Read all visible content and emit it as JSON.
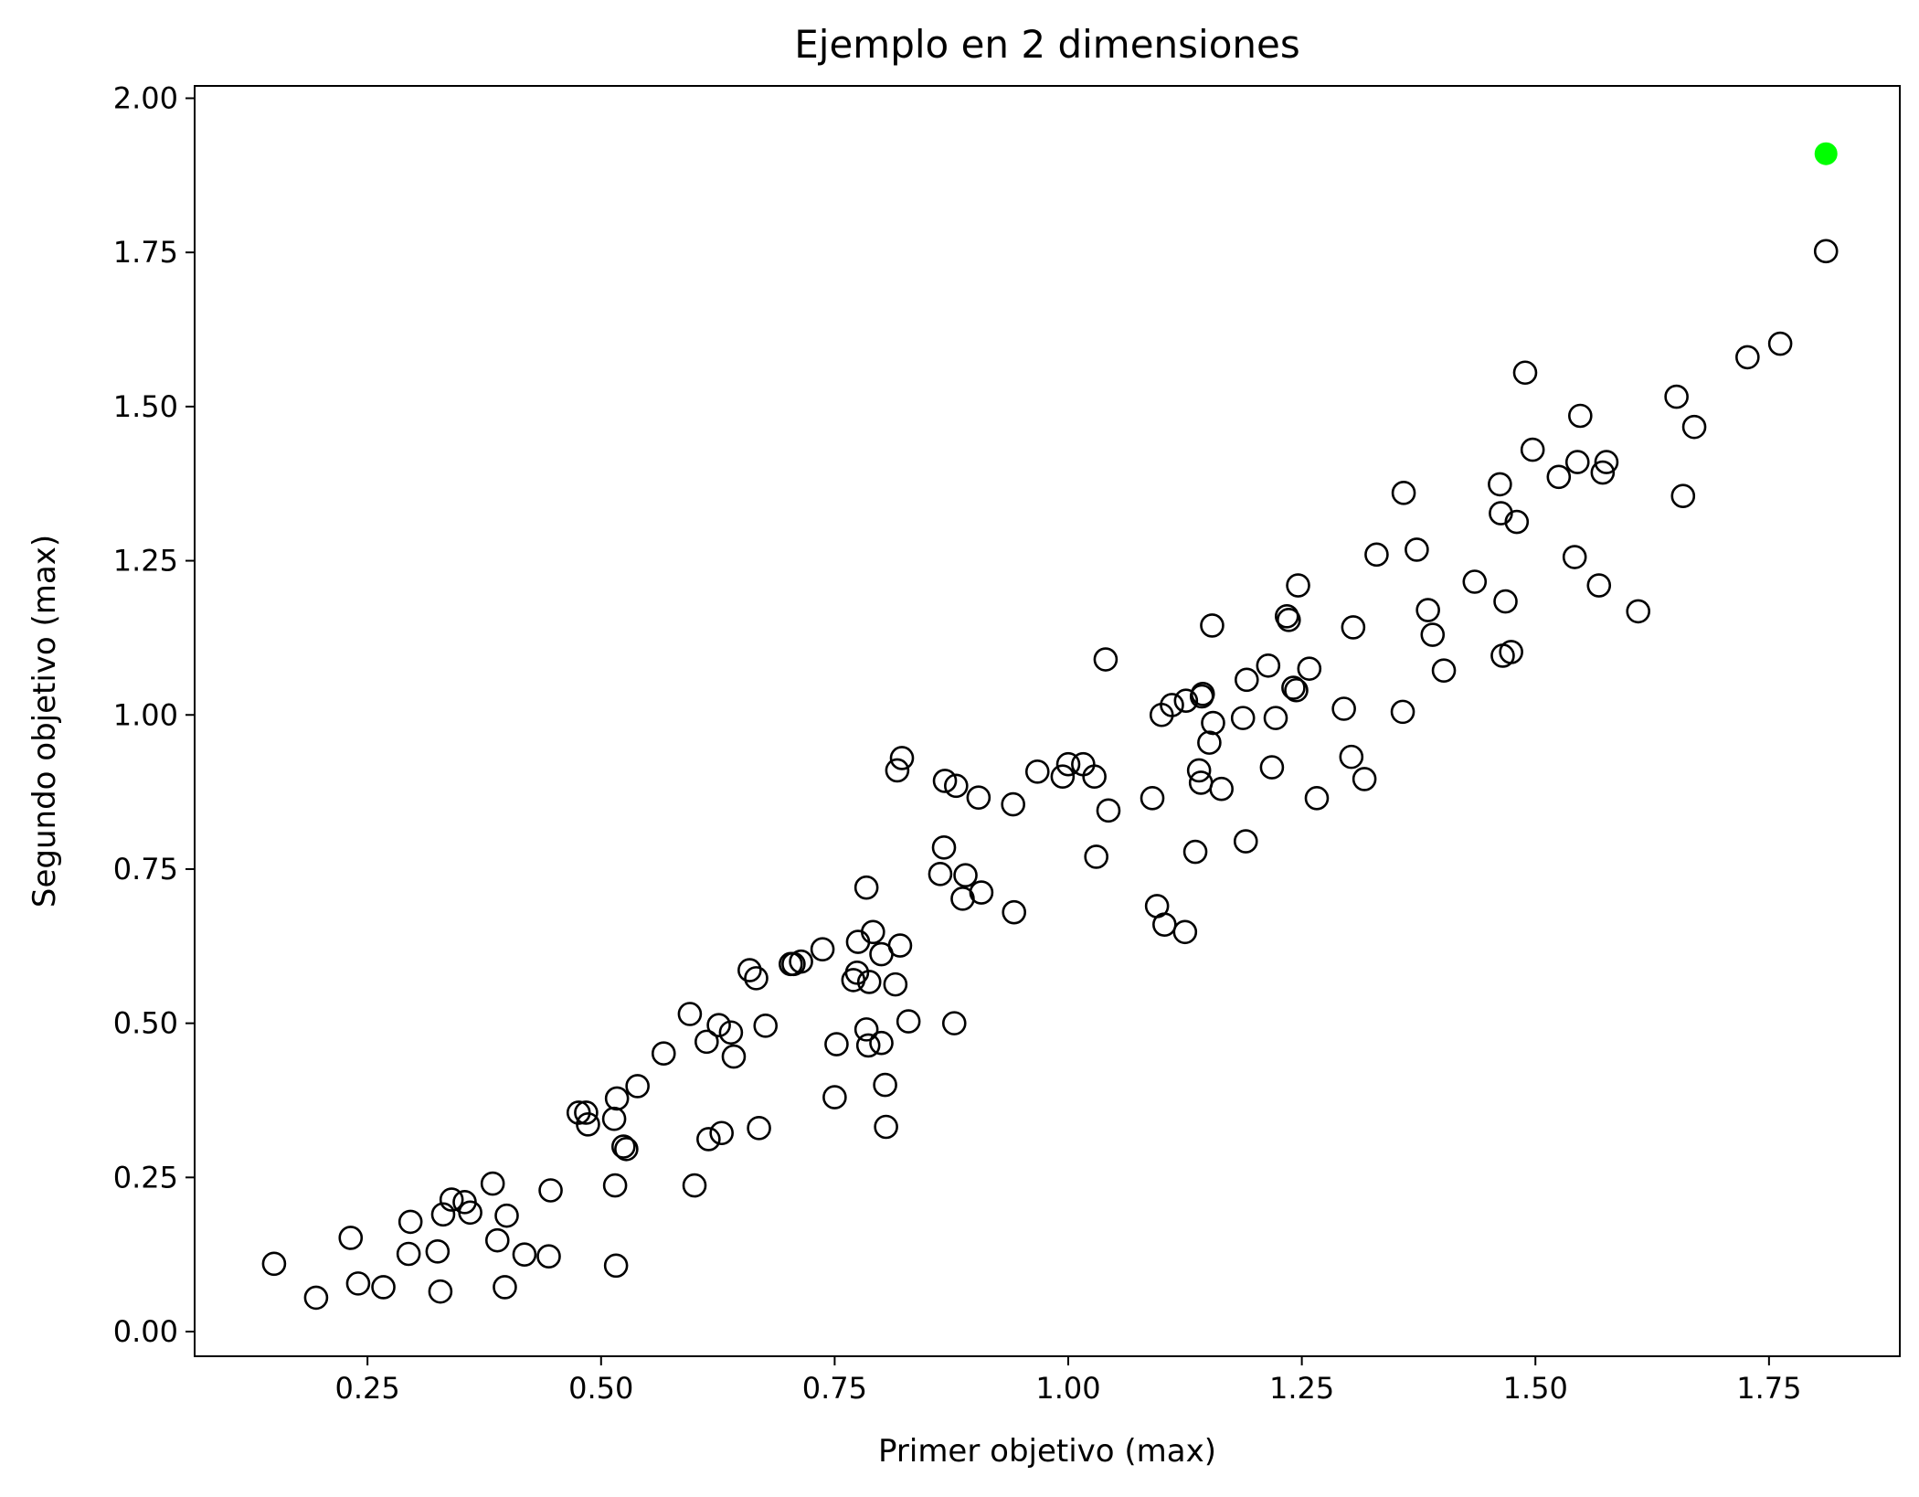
{
  "chart_data": {
    "type": "scatter",
    "title": "Ejemplo en 2 dimensiones",
    "xlabel": "Primer objetivo (max)",
    "ylabel": "Segundo objetivo (max)",
    "xlim": [
      0.065,
      1.89
    ],
    "ylim": [
      -0.04,
      2.02
    ],
    "grid": false,
    "xticks": [
      0.25,
      0.5,
      0.75,
      1.0,
      1.25,
      1.5,
      1.75
    ],
    "xtick_labels": [
      "0.25",
      "0.50",
      "0.75",
      "1.00",
      "1.25",
      "1.50",
      "1.75"
    ],
    "yticks": [
      0.0,
      0.25,
      0.5,
      0.75,
      1.0,
      1.25,
      1.5,
      1.75,
      2.0
    ],
    "ytick_labels": [
      "0.00",
      "0.25",
      "0.50",
      "0.75",
      "1.00",
      "1.25",
      "1.50",
      "1.75",
      "2.00"
    ],
    "series": [
      {
        "marker": "hollow-circle",
        "color": "#000000",
        "points": [
          [
            0.15,
            0.11
          ],
          [
            0.195,
            0.055
          ],
          [
            0.232,
            0.152
          ],
          [
            0.24,
            0.078
          ],
          [
            0.267,
            0.072
          ],
          [
            0.294,
            0.126
          ],
          [
            0.296,
            0.178
          ],
          [
            0.325,
            0.13
          ],
          [
            0.328,
            0.065
          ],
          [
            0.331,
            0.19
          ],
          [
            0.34,
            0.214
          ],
          [
            0.354,
            0.21
          ],
          [
            0.36,
            0.193
          ],
          [
            0.384,
            0.24
          ],
          [
            0.389,
            0.148
          ],
          [
            0.397,
            0.072
          ],
          [
            0.399,
            0.188
          ],
          [
            0.418,
            0.125
          ],
          [
            0.444,
            0.122
          ],
          [
            0.446,
            0.229
          ],
          [
            0.476,
            0.355
          ],
          [
            0.484,
            0.355
          ],
          [
            0.486,
            0.336
          ],
          [
            0.514,
            0.345
          ],
          [
            0.515,
            0.237
          ],
          [
            0.516,
            0.107
          ],
          [
            0.517,
            0.378
          ],
          [
            0.524,
            0.3
          ],
          [
            0.527,
            0.296
          ],
          [
            0.539,
            0.398
          ],
          [
            0.567,
            0.451
          ],
          [
            0.595,
            0.515
          ],
          [
            0.6,
            0.237
          ],
          [
            0.613,
            0.47
          ],
          [
            0.615,
            0.312
          ],
          [
            0.626,
            0.497
          ],
          [
            0.629,
            0.322
          ],
          [
            0.639,
            0.485
          ],
          [
            0.642,
            0.446
          ],
          [
            0.659,
            0.586
          ],
          [
            0.666,
            0.573
          ],
          [
            0.669,
            0.33
          ],
          [
            0.676,
            0.496
          ],
          [
            0.703,
            0.596
          ],
          [
            0.706,
            0.596
          ],
          [
            0.714,
            0.6
          ],
          [
            0.737,
            0.62
          ],
          [
            0.75,
            0.38
          ],
          [
            0.752,
            0.466
          ],
          [
            0.77,
            0.57
          ],
          [
            0.774,
            0.582
          ],
          [
            0.775,
            0.632
          ],
          [
            0.784,
            0.72
          ],
          [
            0.784,
            0.49
          ],
          [
            0.786,
            0.464
          ],
          [
            0.787,
            0.567
          ],
          [
            0.791,
            0.648
          ],
          [
            0.8,
            0.468
          ],
          [
            0.8,
            0.612
          ],
          [
            0.804,
            0.4
          ],
          [
            0.805,
            0.332
          ],
          [
            0.815,
            0.563
          ],
          [
            0.817,
            0.91
          ],
          [
            0.82,
            0.626
          ],
          [
            0.822,
            0.93
          ],
          [
            0.829,
            0.503
          ],
          [
            0.863,
            0.742
          ],
          [
            0.867,
            0.785
          ],
          [
            0.868,
            0.893
          ],
          [
            0.878,
            0.5
          ],
          [
            0.88,
            0.885
          ],
          [
            0.887,
            0.702
          ],
          [
            0.89,
            0.74
          ],
          [
            0.904,
            0.866
          ],
          [
            0.907,
            0.712
          ],
          [
            0.941,
            0.855
          ],
          [
            0.942,
            0.68
          ],
          [
            0.967,
            0.908
          ],
          [
            0.994,
            0.9
          ],
          [
            1.0,
            0.92
          ],
          [
            1.016,
            0.92
          ],
          [
            1.028,
            0.9
          ],
          [
            1.03,
            0.77
          ],
          [
            1.04,
            1.09
          ],
          [
            1.043,
            0.845
          ],
          [
            1.09,
            0.865
          ],
          [
            1.095,
            0.69
          ],
          [
            1.1,
            1.0
          ],
          [
            1.103,
            0.66
          ],
          [
            1.111,
            1.016
          ],
          [
            1.125,
            0.648
          ],
          [
            1.126,
            1.023
          ],
          [
            1.136,
            0.778
          ],
          [
            1.14,
            0.91
          ],
          [
            1.142,
            0.89
          ],
          [
            1.143,
            1.03
          ],
          [
            1.144,
            1.034
          ],
          [
            1.151,
            0.955
          ],
          [
            1.154,
            1.145
          ],
          [
            1.155,
            0.987
          ],
          [
            1.164,
            0.88
          ],
          [
            1.187,
            0.995
          ],
          [
            1.19,
            0.795
          ],
          [
            1.191,
            1.057
          ],
          [
            1.214,
            1.08
          ],
          [
            1.218,
            0.915
          ],
          [
            1.222,
            0.995
          ],
          [
            1.234,
            1.16
          ],
          [
            1.236,
            1.154
          ],
          [
            1.241,
            1.044
          ],
          [
            1.244,
            1.04
          ],
          [
            1.246,
            1.21
          ],
          [
            1.258,
            1.075
          ],
          [
            1.266,
            0.865
          ],
          [
            1.295,
            1.01
          ],
          [
            1.303,
            0.932
          ],
          [
            1.305,
            1.142
          ],
          [
            1.317,
            0.896
          ],
          [
            1.33,
            1.26
          ],
          [
            1.358,
            1.005
          ],
          [
            1.359,
            1.36
          ],
          [
            1.373,
            1.268
          ],
          [
            1.385,
            1.17
          ],
          [
            1.39,
            1.13
          ],
          [
            1.402,
            1.072
          ],
          [
            1.435,
            1.216
          ],
          [
            1.462,
            1.374
          ],
          [
            1.463,
            1.327
          ],
          [
            1.465,
            1.096
          ],
          [
            1.468,
            1.184
          ],
          [
            1.474,
            1.102
          ],
          [
            1.48,
            1.313
          ],
          [
            1.489,
            1.555
          ],
          [
            1.497,
            1.43
          ],
          [
            1.525,
            1.386
          ],
          [
            1.542,
            1.256
          ],
          [
            1.545,
            1.41
          ],
          [
            1.548,
            1.485
          ],
          [
            1.568,
            1.21
          ],
          [
            1.572,
            1.393
          ],
          [
            1.576,
            1.41
          ],
          [
            1.61,
            1.168
          ],
          [
            1.651,
            1.516
          ],
          [
            1.658,
            1.355
          ],
          [
            1.67,
            1.467
          ],
          [
            1.727,
            1.58
          ],
          [
            1.762,
            1.602
          ],
          [
            1.811,
            1.752
          ]
        ]
      },
      {
        "marker": "filled-circle",
        "color": "#00ff00",
        "points": [
          [
            1.811,
            1.91
          ]
        ]
      }
    ]
  }
}
